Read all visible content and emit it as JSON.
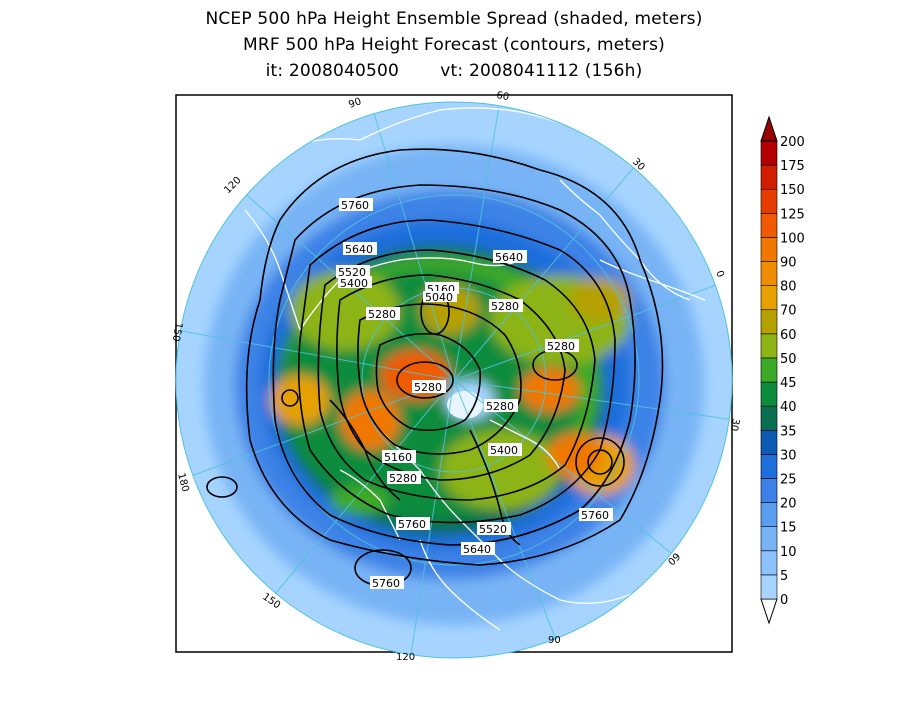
{
  "title": {
    "line1": "NCEP 500 hPa Height Ensemble Spread (shaded, meters)",
    "line2": "MRF 500 hPa Height Forecast (contours, meters)",
    "init_label": "it: 2008040500",
    "valid_label": "vt: 2008041112 (156h)"
  },
  "colorbar": {
    "levels": [
      "0",
      "5",
      "10",
      "15",
      "20",
      "25",
      "30",
      "35",
      "40",
      "45",
      "50",
      "60",
      "70",
      "80",
      "90",
      "100",
      "125",
      "150",
      "175",
      "200"
    ],
    "colors": [
      "#a6d4ff",
      "#8cc2ff",
      "#78b4f5",
      "#5a9ef0",
      "#3c82e6",
      "#1e6edc",
      "#0c5ab4",
      "#0a6e50",
      "#0a8c3c",
      "#3caa28",
      "#8cb414",
      "#b4a000",
      "#e6a000",
      "#f08c00",
      "#f07800",
      "#f05a00",
      "#e63c00",
      "#d21e00",
      "#b40000",
      "#960000"
    ]
  },
  "longitude_labels": [
    "60",
    "30",
    "0",
    "30",
    "60",
    "90",
    "120",
    "150",
    "180",
    "150",
    "120",
    "90"
  ],
  "contour_labels": [
    "5760",
    "5640",
    "5520",
    "5400",
    "5160",
    "5040",
    "5280",
    "5640",
    "5280",
    "5280",
    "5280",
    "5280",
    "5160",
    "5400",
    "5280",
    "5760",
    "5520",
    "5640",
    "5760",
    "5760"
  ],
  "colors": {
    "ocean_outside": "#5bbcd8",
    "frame": "#000000",
    "graticule": "#4fc3dc",
    "coastline": "#ffffff",
    "contour": "#000000"
  }
}
